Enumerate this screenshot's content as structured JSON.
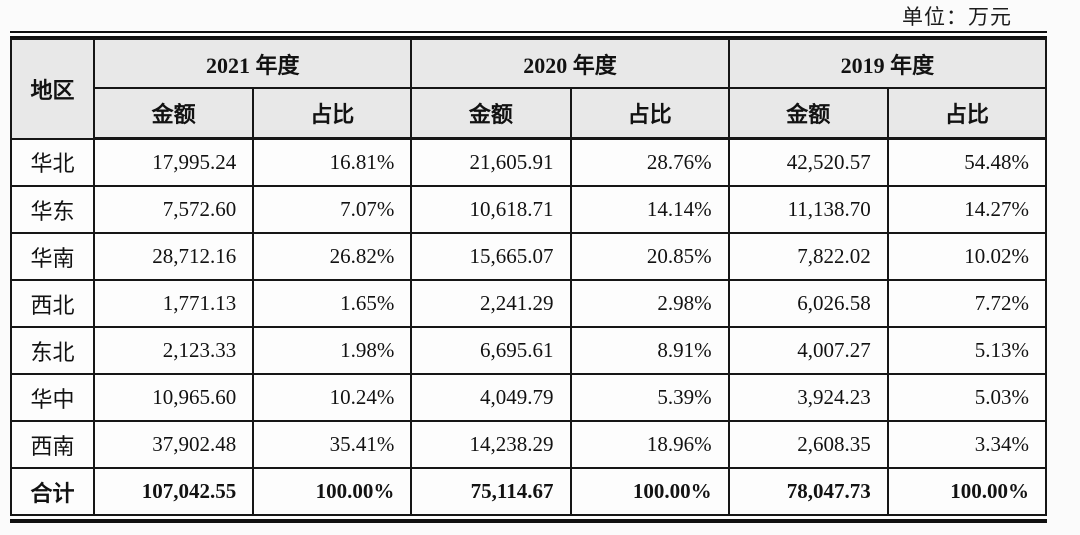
{
  "unit_label": "单位：万元",
  "table": {
    "region_header": "地区",
    "year_groups": [
      {
        "label": "2021 年度"
      },
      {
        "label": "2020 年度"
      },
      {
        "label": "2019 年度"
      }
    ],
    "sub_headers": {
      "amount": "金额",
      "share": "占比"
    },
    "rows": [
      {
        "region": "华北",
        "values": [
          "17,995.24",
          "16.81%",
          "21,605.91",
          "28.76%",
          "42,520.57",
          "54.48%"
        ]
      },
      {
        "region": "华东",
        "values": [
          "7,572.60",
          "7.07%",
          "10,618.71",
          "14.14%",
          "11,138.70",
          "14.27%"
        ]
      },
      {
        "region": "华南",
        "values": [
          "28,712.16",
          "26.82%",
          "15,665.07",
          "20.85%",
          "7,822.02",
          "10.02%"
        ]
      },
      {
        "region": "西北",
        "values": [
          "1,771.13",
          "1.65%",
          "2,241.29",
          "2.98%",
          "6,026.58",
          "7.72%"
        ]
      },
      {
        "region": "东北",
        "values": [
          "2,123.33",
          "1.98%",
          "6,695.61",
          "8.91%",
          "4,007.27",
          "5.13%"
        ]
      },
      {
        "region": "华中",
        "values": [
          "10,965.60",
          "10.24%",
          "4,049.79",
          "5.39%",
          "3,924.23",
          "5.03%"
        ]
      },
      {
        "region": "西南",
        "values": [
          "37,902.48",
          "35.41%",
          "14,238.29",
          "18.96%",
          "2,608.35",
          "3.34%"
        ]
      },
      {
        "region": "合计",
        "values": [
          "107,042.55",
          "100.00%",
          "75,114.67",
          "100.00%",
          "78,047.73",
          "100.00%"
        ],
        "is_total": true
      }
    ]
  },
  "colors": {
    "header_background": "#e8e8e8",
    "cell_background": "#fdfdfd",
    "border": "#161616",
    "text": "#121212"
  }
}
